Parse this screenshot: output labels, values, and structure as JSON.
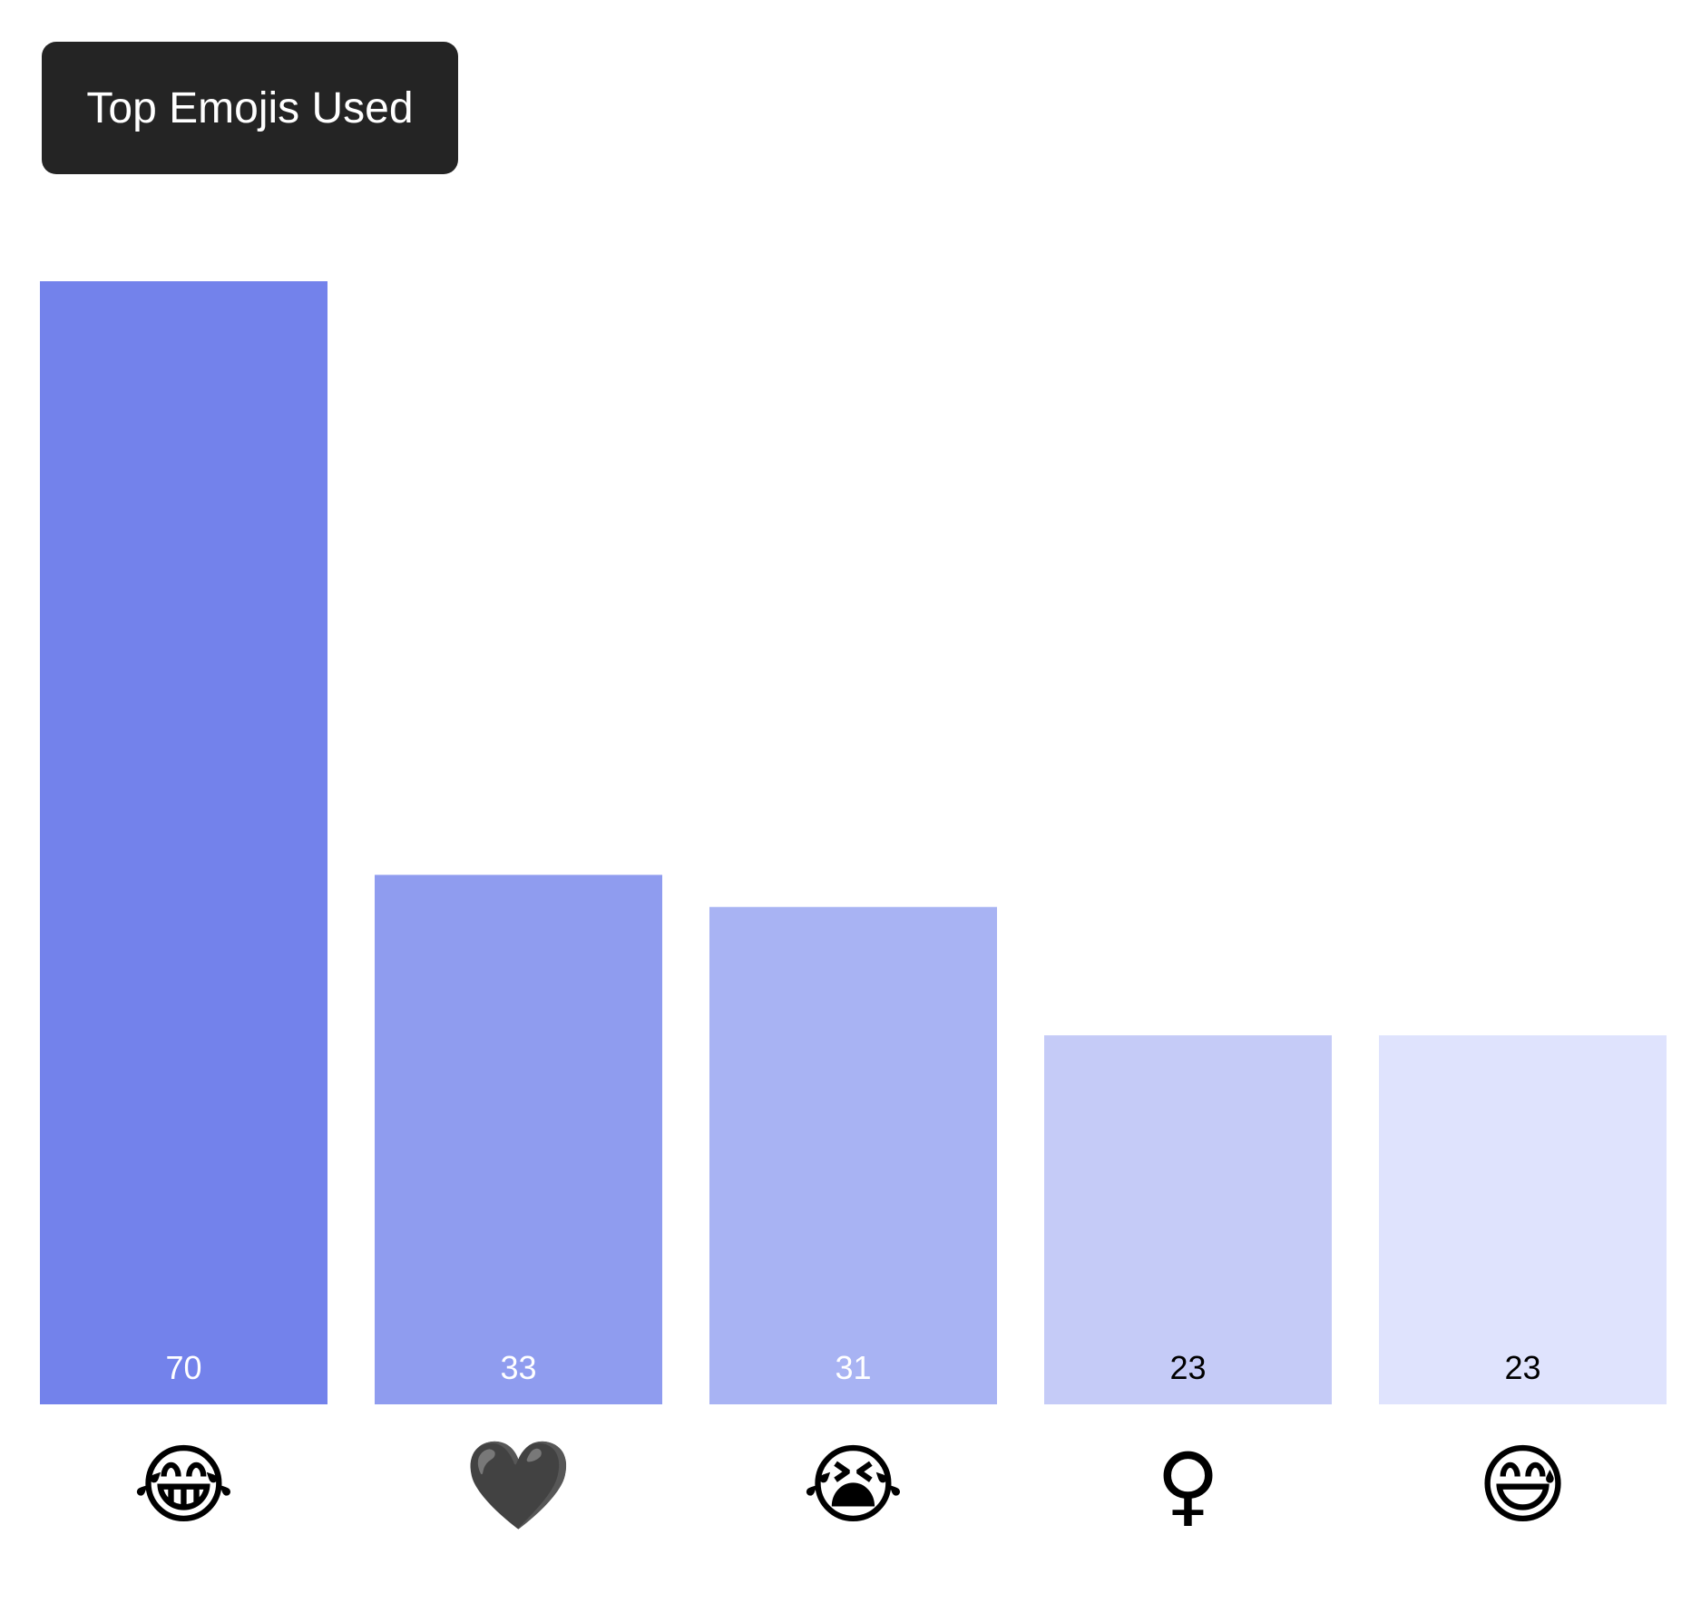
{
  "chart_data": {
    "type": "bar",
    "title": "Top Emojis Used",
    "categories": [
      "😂",
      "🖤",
      "😭",
      "♀",
      "😅"
    ],
    "values": [
      70,
      33,
      31,
      23,
      23
    ],
    "ylim": [
      0,
      70
    ],
    "grid": false,
    "legend": "none",
    "bar_colors": [
      "#7382eb",
      "#8f9cef",
      "#a8b3f3",
      "#c5cbf7",
      "#dfe3fd"
    ],
    "value_label_colors": [
      "#ffffff",
      "#ffffff",
      "#ffffff",
      "#000000",
      "#000000"
    ]
  }
}
